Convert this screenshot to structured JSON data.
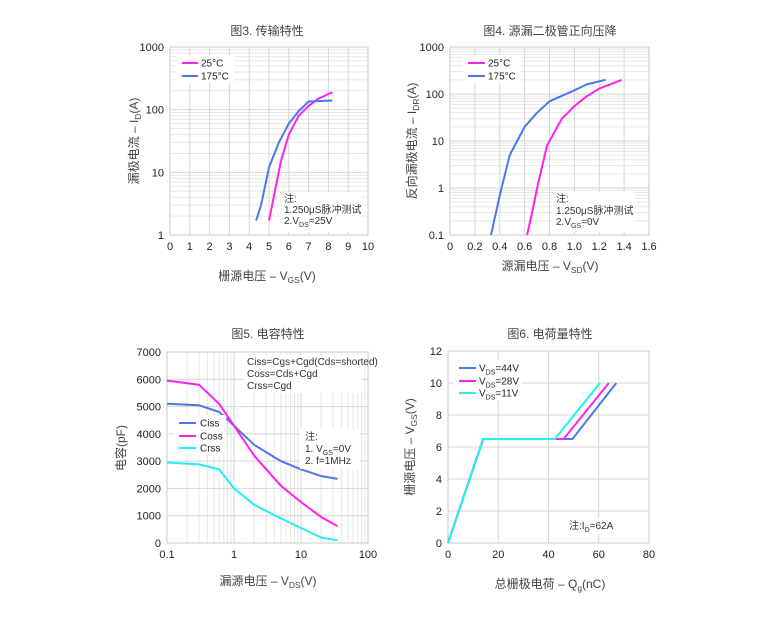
{
  "chart_data": [
    {
      "type": "line",
      "title": "图3. 传输特性",
      "xlabel": {
        "pre": "栅源电压 – V",
        "sub": "GS",
        "post": "(V)"
      },
      "ylabel": {
        "pre": "漏极电流 – I",
        "sub": "D",
        "post": "(A)"
      },
      "xscale": "linear",
      "yscale": "log",
      "xlim": [
        0,
        10
      ],
      "ylim": [
        1,
        1000
      ],
      "xticks": [
        "0",
        "1",
        "2",
        "3",
        "4",
        "5",
        "6",
        "7",
        "8",
        "9",
        "10"
      ],
      "yticks": [
        "1",
        "10",
        "100",
        "1000"
      ],
      "grid": true,
      "legend_position": "top-left",
      "notes": [
        {
          "pre": "注:",
          "sub": "",
          "post": ""
        },
        {
          "pre": "1.250μS脉冲测试",
          "sub": "",
          "post": ""
        },
        {
          "pre": "2.V",
          "sub": "DS",
          "post": "=25V"
        }
      ],
      "series": [
        {
          "name": {
            "pre": "25°C",
            "sub": "",
            "post": ""
          },
          "color": "#ff22ee",
          "x": [
            5.0,
            5.3,
            5.6,
            6.0,
            6.5,
            7.0,
            7.5,
            8.2
          ],
          "y": [
            1.7,
            5,
            15,
            40,
            80,
            115,
            150,
            190
          ]
        },
        {
          "name": {
            "pre": "175°C",
            "sub": "",
            "post": ""
          },
          "color": "#4a78e8",
          "x": [
            4.35,
            4.6,
            5.0,
            5.5,
            6.0,
            6.5,
            7.0,
            8.2
          ],
          "y": [
            1.7,
            3,
            12,
            30,
            60,
            95,
            135,
            140
          ]
        }
      ]
    },
    {
      "type": "line",
      "title": "图4. 源漏二极管正向压降",
      "xlabel": {
        "pre": "源漏电压 – V",
        "sub": "SD",
        "post": "(V)"
      },
      "ylabel": {
        "pre": "反向漏极电流 – I",
        "sub": "DR",
        "post": "(A)"
      },
      "xscale": "linear",
      "yscale": "log",
      "xlim": [
        0,
        1.6
      ],
      "ylim": [
        0.1,
        1000
      ],
      "xticks": [
        "0",
        "0.2",
        "0.4",
        "0.6",
        "0.8",
        "1.0",
        "1.2",
        "1.4",
        "1.6"
      ],
      "yticks": [
        "0.1",
        "1",
        "10",
        "100",
        "1000"
      ],
      "grid": true,
      "legend_position": "top-left",
      "notes": [
        {
          "pre": "注:",
          "sub": "",
          "post": ""
        },
        {
          "pre": "1.250μS脉冲测试",
          "sub": "",
          "post": ""
        },
        {
          "pre": "2.V",
          "sub": "GS",
          "post": "=0V"
        }
      ],
      "series": [
        {
          "name": {
            "pre": "25°C",
            "sub": "",
            "post": ""
          },
          "color": "#ff22ee",
          "x": [
            0.62,
            0.66,
            0.7,
            0.78,
            0.9,
            1.0,
            1.1,
            1.2,
            1.38
          ],
          "y": [
            0.1,
            0.3,
            1,
            8,
            30,
            55,
            90,
            130,
            200
          ]
        },
        {
          "name": {
            "pre": "175°C",
            "sub": "",
            "post": ""
          },
          "color": "#4a78e8",
          "x": [
            0.33,
            0.4,
            0.48,
            0.6,
            0.7,
            0.8,
            1.0,
            1.1,
            1.25
          ],
          "y": [
            0.1,
            0.7,
            5,
            20,
            40,
            70,
            120,
            160,
            200
          ]
        }
      ]
    },
    {
      "type": "line",
      "title": "图5. 电容特性",
      "xlabel": {
        "pre": "漏源电压 – V",
        "sub": "DS",
        "post": "(V)"
      },
      "ylabel": {
        "pre": "电容(pF)",
        "sub": "",
        "post": ""
      },
      "xscale": "log",
      "yscale": "linear",
      "xlim": [
        0.1,
        100
      ],
      "ylim": [
        0,
        7000
      ],
      "xticks": [
        "0.1",
        "1",
        "10",
        "100"
      ],
      "yticks": [
        "0",
        "1000",
        "2000",
        "3000",
        "4000",
        "5000",
        "6000",
        "7000"
      ],
      "grid": true,
      "legend_position": "center-left",
      "annotation": [
        "Ciss=Cgs+Cgd(Cds=shorted)",
        "Coss=Cds+Cgd",
        "Crss=Cgd"
      ],
      "notes": [
        {
          "pre": "注:",
          "sub": "",
          "post": ""
        },
        {
          "pre": "1. V",
          "sub": "GS",
          "post": "=0V"
        },
        {
          "pre": "2. f=1MHz",
          "sub": "",
          "post": ""
        }
      ],
      "series": [
        {
          "name": {
            "pre": "Ciss",
            "sub": "",
            "post": ""
          },
          "color": "#4a78e8",
          "x": [
            0.1,
            0.3,
            0.6,
            1,
            2,
            5,
            10,
            20,
            35
          ],
          "y": [
            5100,
            5050,
            4800,
            4300,
            3600,
            3000,
            2700,
            2450,
            2350
          ]
        },
        {
          "name": {
            "pre": "Coss",
            "sub": "",
            "post": ""
          },
          "color": "#ff22ee",
          "x": [
            0.1,
            0.3,
            0.6,
            1,
            2,
            5,
            10,
            20,
            35
          ],
          "y": [
            5950,
            5800,
            5100,
            4300,
            3200,
            2100,
            1500,
            950,
            620
          ]
        },
        {
          "name": {
            "pre": "Crss",
            "sub": "",
            "post": ""
          },
          "color": "#22f0f0",
          "x": [
            0.1,
            0.3,
            0.6,
            1,
            2,
            5,
            10,
            20,
            35
          ],
          "y": [
            2950,
            2880,
            2700,
            2000,
            1400,
            900,
            550,
            200,
            100
          ]
        }
      ]
    },
    {
      "type": "line",
      "title": "图6. 电荷量特性",
      "xlabel": {
        "pre": "总栅极电荷 – Q",
        "sub": "g",
        "post": "(nC)"
      },
      "ylabel": {
        "pre": "栅源电压 – V",
        "sub": "GS",
        "post": "(V)"
      },
      "xscale": "linear",
      "yscale": "linear",
      "xlim": [
        0,
        80
      ],
      "ylim": [
        0,
        12
      ],
      "xticks": [
        "0",
        "20",
        "40",
        "60",
        "80"
      ],
      "yticks": [
        "0",
        "2",
        "4",
        "6",
        "8",
        "10",
        "12"
      ],
      "grid": true,
      "legend_position": "top-left",
      "notes": [
        {
          "pre": "注:I",
          "sub": "D",
          "post": "=62A"
        }
      ],
      "series": [
        {
          "name": {
            "pre": "V",
            "sub": "DS",
            "post": "=44V"
          },
          "color": "#4a78e8",
          "x": [
            0,
            14,
            49.5,
            67
          ],
          "y": [
            0,
            6.5,
            6.5,
            10
          ]
        },
        {
          "name": {
            "pre": "V",
            "sub": "DS",
            "post": "=28V"
          },
          "color": "#ff22ee",
          "x": [
            0,
            14,
            46,
            64
          ],
          "y": [
            0,
            6.5,
            6.5,
            10
          ]
        },
        {
          "name": {
            "pre": "V",
            "sub": "DS",
            "post": "=11V"
          },
          "color": "#22f0f0",
          "x": [
            0,
            14,
            42.5,
            60.5
          ],
          "y": [
            0,
            6.5,
            6.5,
            10
          ]
        }
      ]
    }
  ]
}
